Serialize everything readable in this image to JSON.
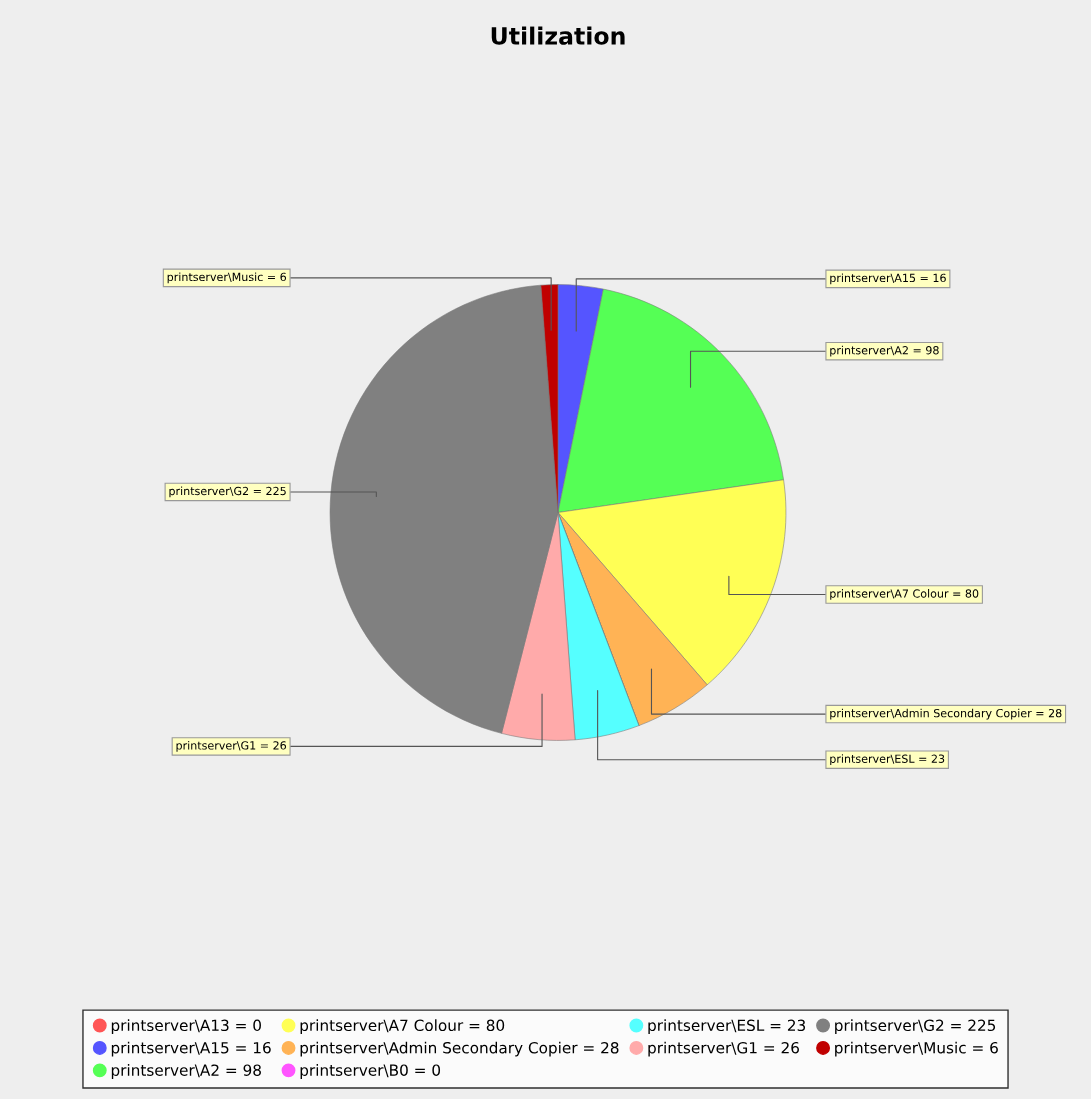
{
  "chart_data": {
    "type": "pie",
    "title": "Utilization",
    "categories": [
      "printserver\\A13 = 0",
      "printserver\\A15 = 16",
      "printserver\\A2 = 98",
      "printserver\\A7 Colour = 80",
      "printserver\\Admin Secondary Copier = 28",
      "printserver\\B0 = 0",
      "printserver\\ESL = 23",
      "printserver\\G1 = 26",
      "printserver\\G2 = 225",
      "printserver\\Music = 6"
    ],
    "values": [
      0,
      16,
      98,
      80,
      28,
      0,
      23,
      26,
      225,
      6
    ],
    "value_labels": [
      null,
      "printserver\\A15 = 16",
      "printserver\\A2 = 98",
      "printserver\\A7 Colour = 80",
      "printserver\\Admin Secondary Copier = 28",
      null,
      "printserver\\ESL = 23",
      "printserver\\G1 = 26",
      "printserver\\G2 = 225",
      "printserver\\Music = 6"
    ],
    "colors": [
      "#ff5555",
      "#5555ff",
      "#55ff55",
      "#ffff55",
      "#ffb355",
      "#ff55ff",
      "#55ffff",
      "#ffaaaa",
      "#808080",
      "#c00000"
    ],
    "legend": "bottom"
  }
}
